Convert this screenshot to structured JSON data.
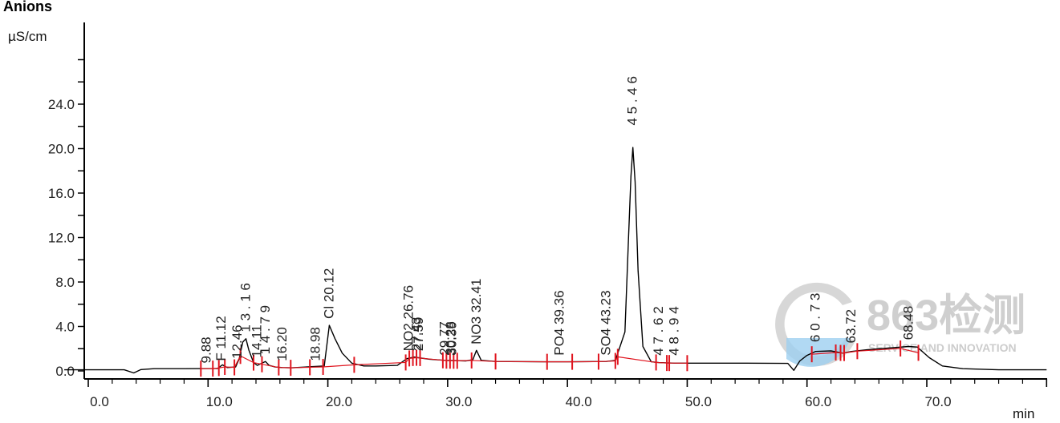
{
  "chart_data": {
    "type": "line",
    "title": "Anions",
    "ylabel": "µS/cm",
    "xlabel": "min",
    "xlim": [
      -2,
      80
    ],
    "ylim": [
      -0.8,
      30
    ],
    "x_ticks": [
      0,
      10,
      20,
      30,
      40,
      50,
      60,
      70
    ],
    "x_tick_labels": [
      "0.0",
      "10.0",
      "20.0",
      "30.0",
      "40.0",
      "50.0",
      "60.0",
      "70.0"
    ],
    "y_ticks": [
      0,
      4,
      8,
      12,
      16,
      20,
      24
    ],
    "y_tick_labels": [
      "0.0",
      "4.0",
      "8.0",
      "12.0",
      "16.0",
      "20.0",
      "24.0"
    ],
    "grid": false,
    "series": [
      {
        "color": "#000000",
        "x": [
          -2,
          0,
          3,
          3.8,
          4.4,
          5.5,
          8,
          10.8,
          11.2,
          11.6,
          12.3,
          12.6,
          12.9,
          13.16,
          13.4,
          13.8,
          14.11,
          14.5,
          14.79,
          15.1,
          15.6,
          16.2,
          17,
          19.7,
          20.12,
          20.6,
          21.2,
          22,
          23,
          24,
          25.8,
          26.6,
          27.2,
          27.8,
          28.5,
          29.8,
          31.5,
          32.1,
          32.41,
          32.8,
          34,
          38,
          39.36,
          40,
          43.23,
          44,
          44.8,
          45.1,
          45.3,
          45.46,
          45.65,
          45.9,
          46.3,
          47,
          47.62,
          48.94,
          50,
          55,
          58.4,
          58.9,
          59.4,
          60,
          60.7,
          62,
          63,
          63.72,
          65,
          68.48,
          69.2,
          70.2,
          71.3,
          73,
          76,
          80
        ],
        "y": [
          0.1,
          0.1,
          0.1,
          -0.18,
          0.12,
          0.2,
          0.2,
          0.22,
          0.55,
          0.3,
          0.35,
          1.1,
          2.6,
          2.9,
          1.9,
          0.75,
          0.5,
          0.7,
          0.85,
          0.5,
          0.35,
          0.3,
          0.28,
          0.45,
          4.1,
          2.9,
          1.6,
          0.7,
          0.45,
          0.45,
          0.5,
          1.1,
          1.25,
          1.15,
          1.05,
          0.95,
          0.9,
          1.0,
          1.85,
          0.95,
          0.85,
          0.82,
          0.82,
          0.82,
          0.85,
          0.95,
          3.5,
          12,
          17.5,
          20.1,
          17,
          9,
          2.2,
          0.82,
          0.75,
          0.7,
          0.7,
          0.7,
          0.68,
          0.05,
          0.9,
          1.4,
          1.75,
          1.8,
          1.6,
          1.75,
          1.9,
          2.2,
          2.15,
          1.2,
          0.45,
          0.2,
          0.1,
          0.1
        ]
      }
    ],
    "peak_labels": [
      {
        "x": 9.88,
        "y": 0.4,
        "text": "9.88"
      },
      {
        "x": 11.12,
        "y": 0.6,
        "text": "F 11.12"
      },
      {
        "x": 12.46,
        "y": 0.8,
        "text": "12.46"
      },
      {
        "x": 13.16,
        "y": 3.2,
        "text": "1 3 . 1 6"
      },
      {
        "x": 14.11,
        "y": 0.9,
        "text": "14.11"
      },
      {
        "x": 14.79,
        "y": 1.2,
        "text": "1 4 . 7 9"
      },
      {
        "x": 16.2,
        "y": 0.6,
        "text": "16.20"
      },
      {
        "x": 18.98,
        "y": 0.6,
        "text": "18.98"
      },
      {
        "x": 20.12,
        "y": 4.4,
        "text": "Cl 20.12"
      },
      {
        "x": 26.76,
        "y": 1.5,
        "text": "NO2 26.76"
      },
      {
        "x": 27.43,
        "y": 1.5,
        "text": "27.43"
      },
      {
        "x": 27.59,
        "y": 1.5,
        "text": "27.59"
      },
      {
        "x": 29.77,
        "y": 1.1,
        "text": "29.77"
      },
      {
        "x": 30.28,
        "y": 1.1,
        "text": "30.28"
      },
      {
        "x": 30.39,
        "y": 1.1,
        "text": "30.39"
      },
      {
        "x": 32.41,
        "y": 2.1,
        "text": "NO3 32.41"
      },
      {
        "x": 39.36,
        "y": 1.1,
        "text": "PO4 39.36"
      },
      {
        "x": 43.23,
        "y": 1.1,
        "text": "SO4 43.23"
      },
      {
        "x": 45.46,
        "y": 21.8,
        "text": "4 5 . 4 6"
      },
      {
        "x": 47.62,
        "y": 1.1,
        "text": "4 7 . 6 2"
      },
      {
        "x": 48.94,
        "y": 1.1,
        "text": "4 8 . 9 4"
      },
      {
        "x": 60.73,
        "y": 2.3,
        "text": "6 0 . 7 3"
      },
      {
        "x": 63.72,
        "y": 2.2,
        "text": "63.72"
      },
      {
        "x": 68.48,
        "y": 2.5,
        "text": "68.48"
      }
    ],
    "integration_marks": [
      9.4,
      10.4,
      10.9,
      11.4,
      12.2,
      12.7,
      13.8,
      14.5,
      15.9,
      16.9,
      18.5,
      19.6,
      22.2,
      26.5,
      26.8,
      27.1,
      27.4,
      27.7,
      29.6,
      29.9,
      30.2,
      30.5,
      30.8,
      32.0,
      34.0,
      38.3,
      40.4,
      42.6,
      44.0,
      44.2,
      47.4,
      48.3,
      48.5,
      50.0,
      60.4,
      62.4,
      62.8,
      63.1,
      64.2,
      67.8,
      69.3
    ]
  },
  "watermark": {
    "brand": "863检测",
    "tagline": "SERVICE AND INNOVATION",
    "colors": {
      "gray": "#c4c4c4",
      "blue": "#9ecff0"
    }
  }
}
